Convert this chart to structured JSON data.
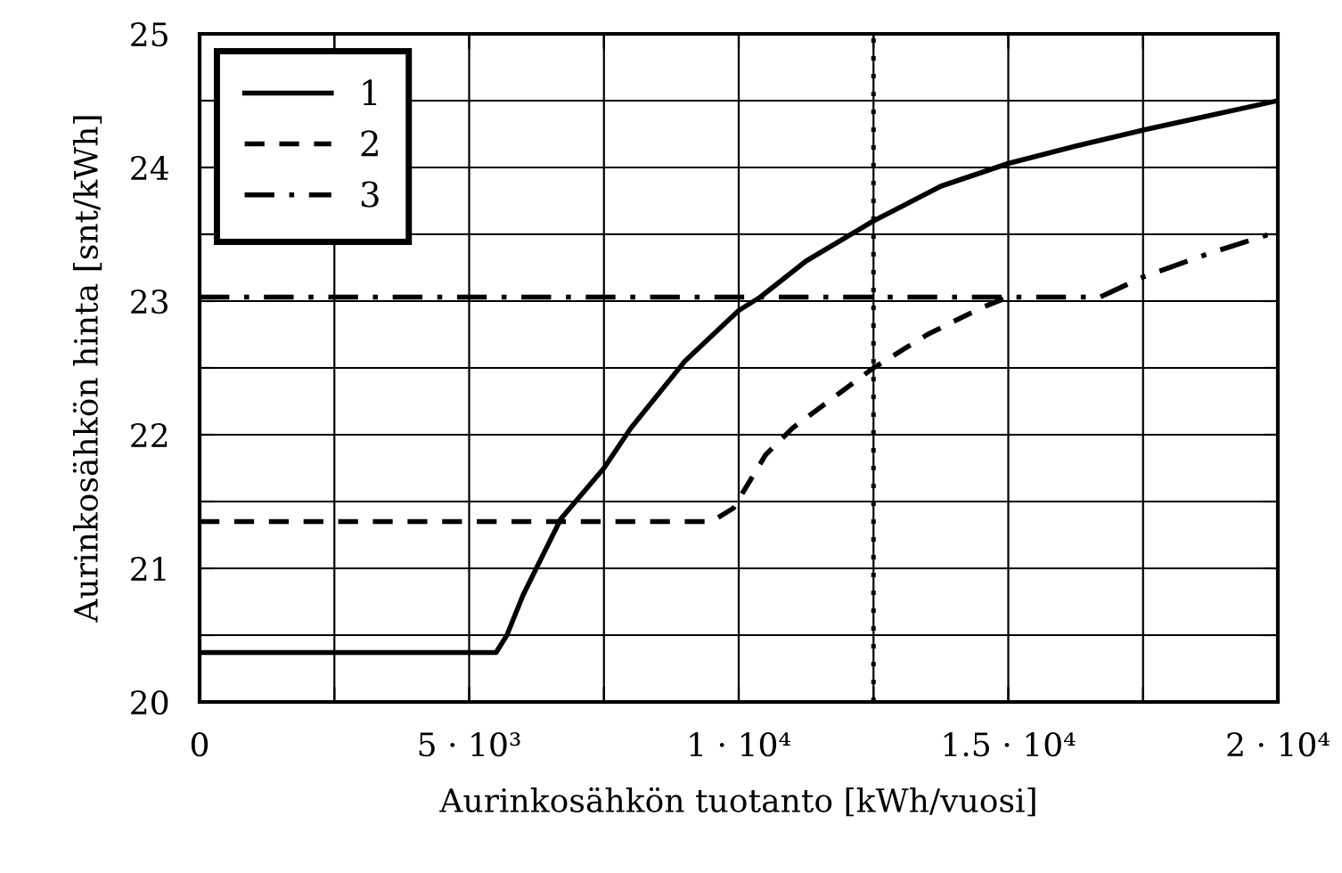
{
  "chart_data": {
    "type": "line",
    "xlabel": "Aurinkosähkön tuotanto [kWh/vuosi]",
    "ylabel": "Aurinkosähkön hinta [snt/kWh]",
    "series": [
      {
        "name": "1",
        "color": "#000000",
        "line_style": "solid",
        "x": [
          0,
          5500,
          5700,
          6000,
          6700,
          7500,
          8000,
          9000,
          10000,
          10400,
          11250,
          12500,
          13750,
          15000,
          16250,
          17500,
          18750,
          20000
        ],
        "values": [
          20.37,
          20.37,
          20.5,
          20.8,
          21.37,
          21.75,
          22.05,
          22.55,
          22.93,
          23.03,
          23.3,
          23.6,
          23.86,
          24.03,
          24.16,
          24.28,
          24.39,
          24.5
        ]
      },
      {
        "name": "2",
        "color": "#000000",
        "line_style": "dashed",
        "x": [
          0,
          9500,
          9900,
          10500,
          11000,
          11500,
          12500,
          13500,
          14500,
          15000
        ],
        "values": [
          21.35,
          21.35,
          21.45,
          21.85,
          22.05,
          22.2,
          22.5,
          22.75,
          22.95,
          23.03
        ]
      },
      {
        "name": "3",
        "color": "#000000",
        "line_style": "dashdot",
        "x": [
          0,
          16700,
          17500,
          18750,
          20000
        ],
        "values": [
          23.03,
          23.03,
          23.18,
          23.36,
          23.52
        ]
      }
    ],
    "xlim": [
      0,
      20000
    ],
    "ylim": [
      20,
      25
    ],
    "xticks": [
      0,
      {
        "value": 2500,
        "label": null
      },
      {
        "value": 5000,
        "label": "5 · 10³"
      },
      {
        "value": 7500,
        "label": null
      },
      {
        "value": 10000,
        "label": "1 · 10⁴"
      },
      {
        "value": 12500,
        "label": null
      },
      {
        "value": 15000,
        "label": "1.5 · 10⁴"
      },
      {
        "value": 17500,
        "label": null
      },
      {
        "value": 20000,
        "label": "2 · 10⁴"
      }
    ],
    "yticks": [
      20,
      {
        "value": 20.5,
        "label": null
      },
      21,
      {
        "value": 21.5,
        "label": null
      },
      22,
      {
        "value": 22.5,
        "label": null
      },
      23,
      {
        "value": 23.5,
        "label": null
      },
      24,
      {
        "value": 24.5,
        "label": null
      },
      25
    ],
    "ref_lines": [
      {
        "axis": "x",
        "value": 12500,
        "color": "#000000",
        "line_style": "dotted"
      }
    ],
    "grid": true,
    "legend": "top left",
    "marker": "none"
  }
}
